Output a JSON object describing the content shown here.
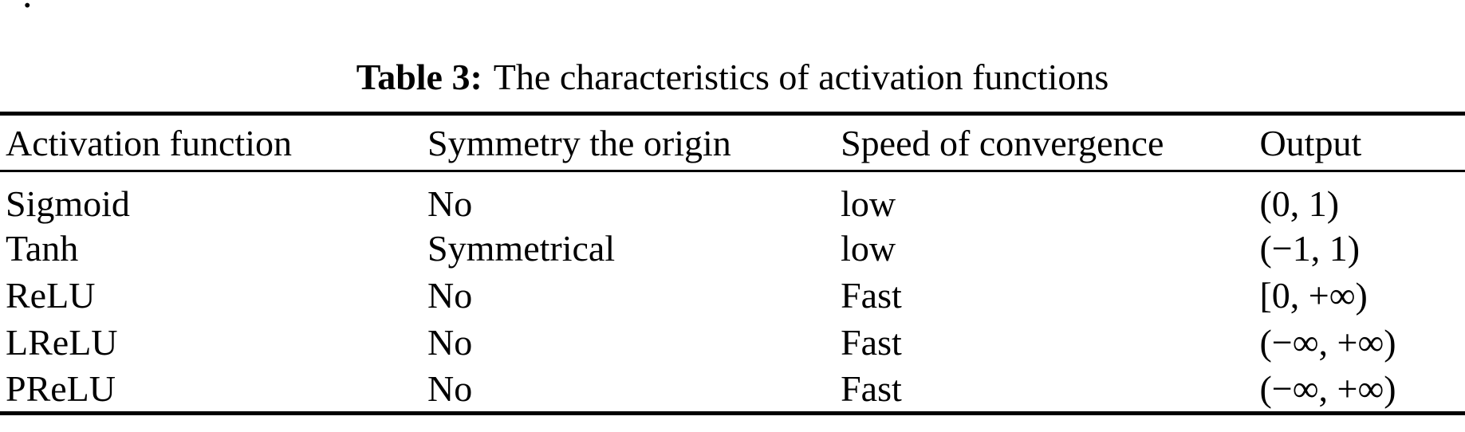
{
  "page": {
    "stray_mark": "."
  },
  "table": {
    "caption": {
      "label": "Table 3:",
      "text": "The characteristics of activation functions"
    },
    "columns": [
      "Activation function",
      "Symmetry the origin",
      "Speed of convergence",
      "Output"
    ],
    "rows": [
      {
        "function": "Sigmoid",
        "symmetry": "No",
        "speed": "low",
        "output": "(0, 1)"
      },
      {
        "function": "Tanh",
        "symmetry": "Symmetrical",
        "speed": "low",
        "output": "(−1, 1)"
      },
      {
        "function": "ReLU",
        "symmetry": "No",
        "speed": "Fast",
        "output": "[0, +∞)"
      },
      {
        "function": "LReLU",
        "symmetry": "No",
        "speed": "Fast",
        "output": "(−∞, +∞)"
      },
      {
        "function": "PReLU",
        "symmetry": "No",
        "speed": "Fast",
        "output": "(−∞, +∞)"
      }
    ]
  }
}
